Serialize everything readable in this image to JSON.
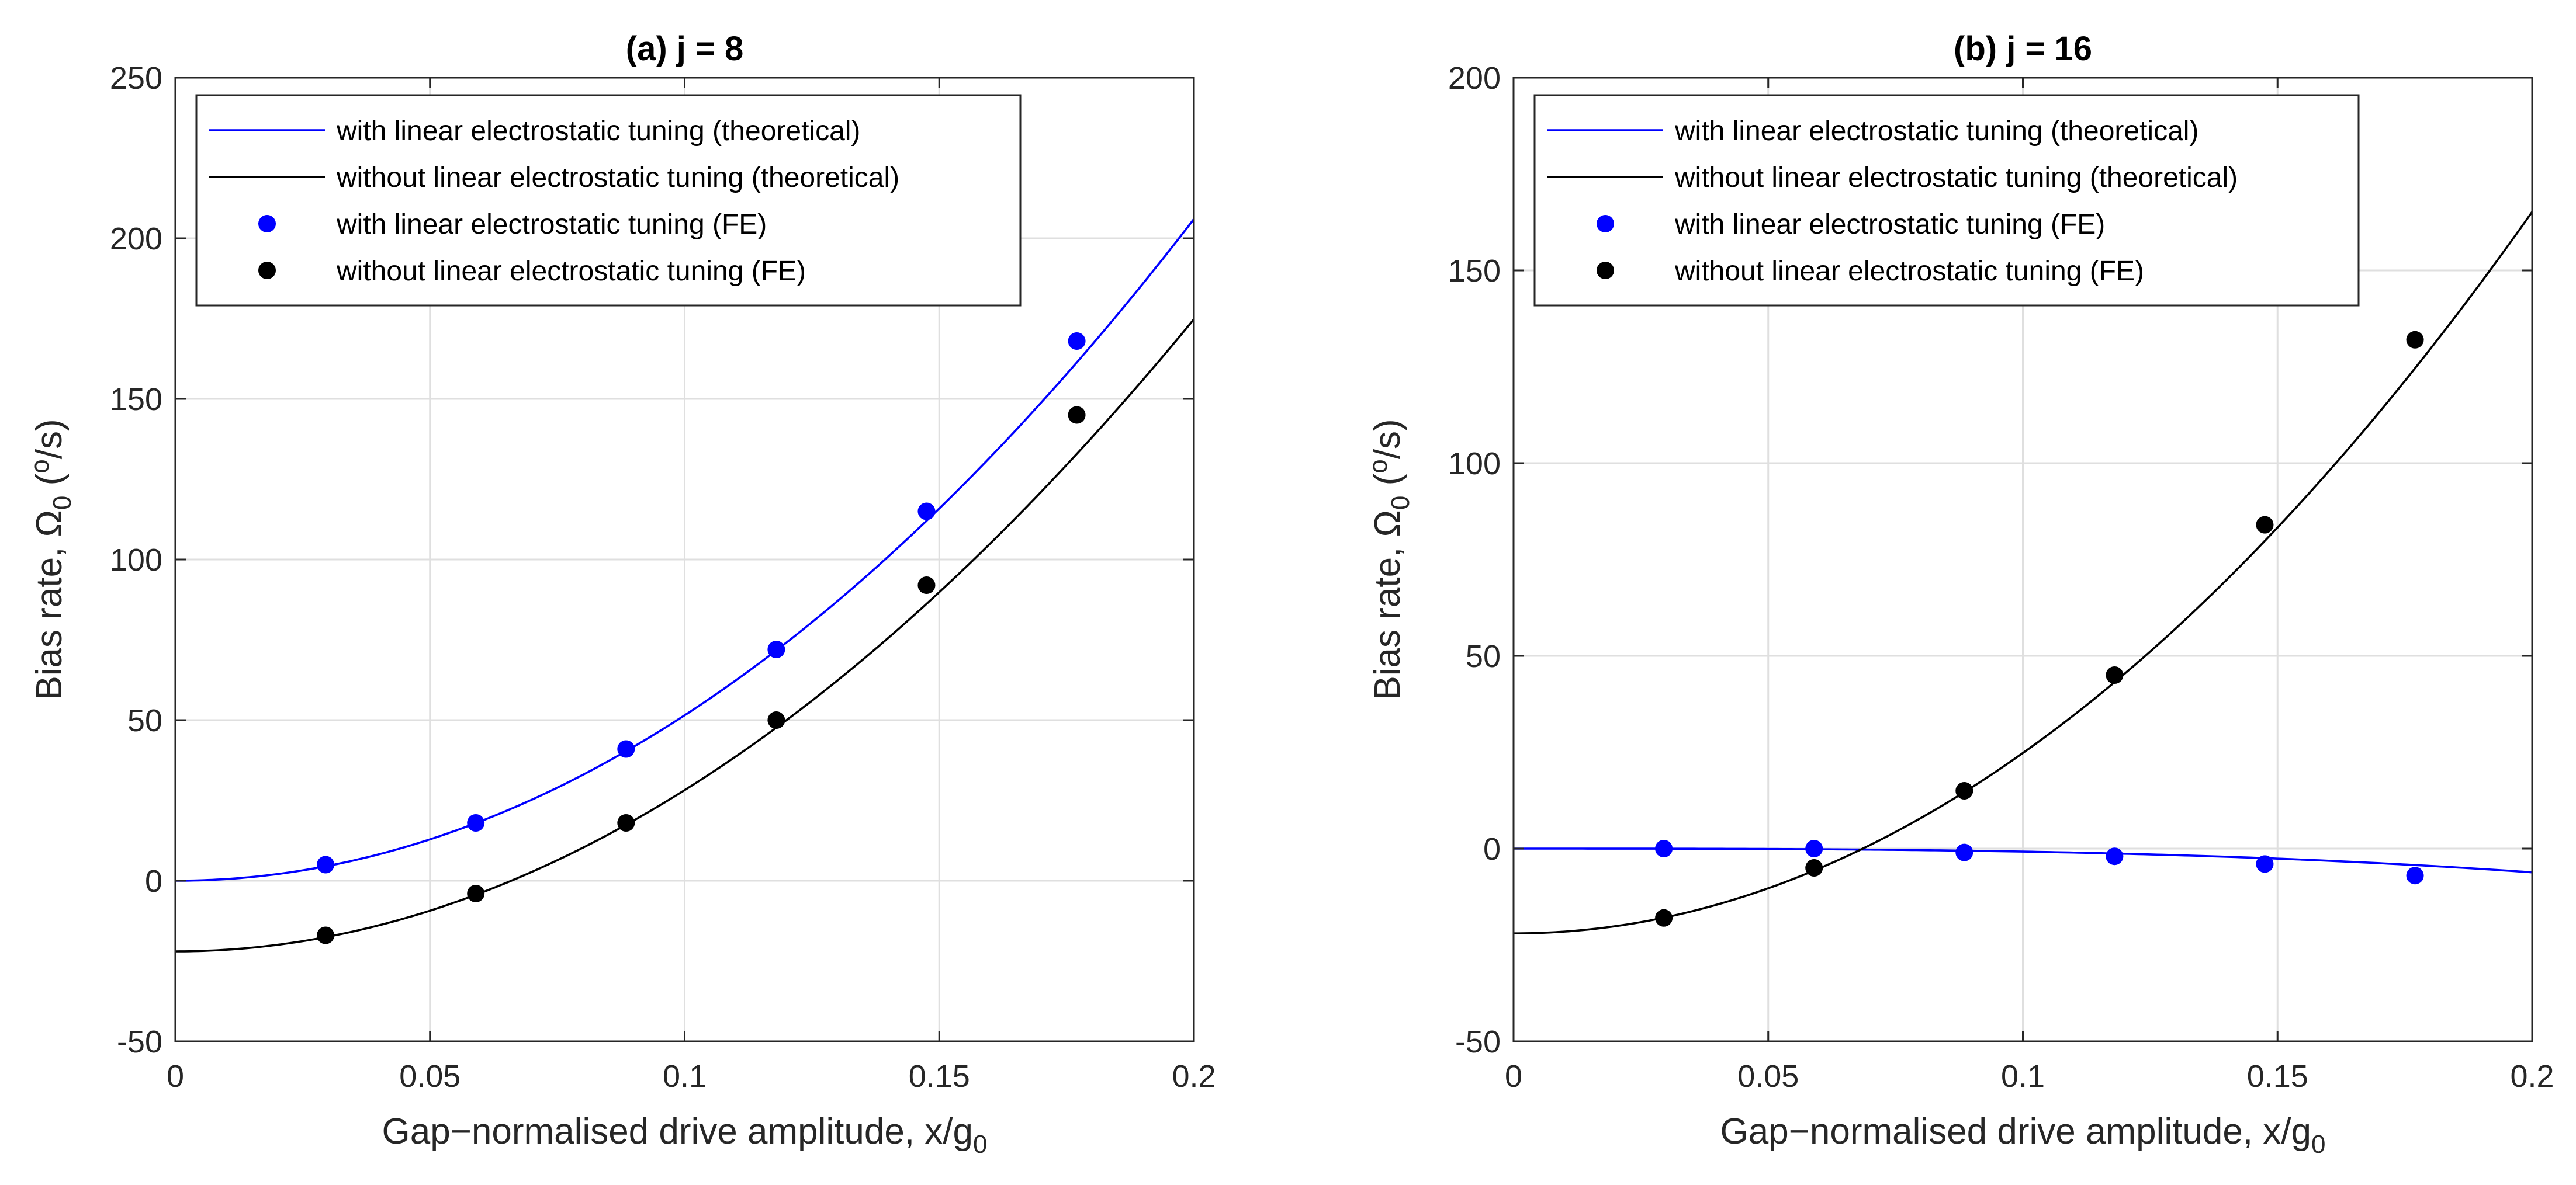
{
  "chart_data": [
    {
      "type": "line",
      "title": "(a) j = 8",
      "xlabel": {
        "main": "Gap−normalised drive amplitude, x/g",
        "sub": "0"
      },
      "ylabel": {
        "main": "Bias rate, Ω",
        "sub": "0",
        "open": " (",
        "sup": "o",
        "close": "/s)"
      },
      "xlim": [
        0,
        0.2
      ],
      "ylim": [
        -50,
        250
      ],
      "x_ticks": [
        0,
        0.05,
        0.1,
        0.15,
        0.2
      ],
      "x_tick_labels": [
        "0",
        "0.05",
        "0.1",
        "0.15",
        "0.2"
      ],
      "y_ticks": [
        -50,
        0,
        50,
        100,
        150,
        200,
        250
      ],
      "y_tick_labels": [
        "-50",
        "0",
        "50",
        "100",
        "150",
        "200",
        "250"
      ],
      "grid": true,
      "legend_position": "top-left",
      "series": [
        {
          "name": "with linear electrostatic tuning (theoretical)",
          "kind": "line",
          "color": "#0000ff",
          "curve": {
            "a": 0,
            "b": 5150,
            "c": 0
          }
        },
        {
          "name": "without linear electrostatic tuning (theoretical)",
          "kind": "line",
          "color": "#000000",
          "curve": {
            "a": -22,
            "b": 5120,
            "c": -1000
          }
        },
        {
          "name": "with linear electrostatic tuning (FE)",
          "kind": "points",
          "color": "#0000ff",
          "x": [
            0.0295,
            0.059,
            0.0885,
            0.118,
            0.1475,
            0.177
          ],
          "y": [
            5,
            18,
            41,
            72,
            115,
            168
          ]
        },
        {
          "name": "without linear electrostatic tuning (FE)",
          "kind": "points",
          "color": "#000000",
          "x": [
            0.0295,
            0.059,
            0.0885,
            0.118,
            0.1475,
            0.177
          ],
          "y": [
            -17,
            -4,
            18,
            50,
            92,
            145
          ]
        }
      ]
    },
    {
      "type": "line",
      "title": "(b) j = 16",
      "xlabel": {
        "main": "Gap−normalised drive amplitude, x/g",
        "sub": "0"
      },
      "ylabel": {
        "main": "Bias rate, Ω",
        "sub": "0",
        "open": " (",
        "sup": "o",
        "close": "/s)"
      },
      "xlim": [
        0,
        0.2
      ],
      "ylim": [
        -50,
        200
      ],
      "x_ticks": [
        0,
        0.05,
        0.1,
        0.15,
        0.2
      ],
      "x_tick_labels": [
        "0",
        "0.05",
        "0.1",
        "0.15",
        "0.2"
      ],
      "y_ticks": [
        -50,
        0,
        50,
        100,
        150,
        200
      ],
      "y_tick_labels": [
        "-50",
        "0",
        "50",
        "100",
        "150",
        "200"
      ],
      "grid": true,
      "legend_position": "top-left",
      "series": [
        {
          "name": "with linear electrostatic tuning (theoretical)",
          "kind": "line",
          "color": "#0000ff",
          "curve": {
            "a": 0,
            "b": 0,
            "c": -770
          }
        },
        {
          "name": "without linear electrostatic tuning (theoretical)",
          "kind": "line",
          "color": "#000000",
          "curve": {
            "a": -22,
            "b": 4680,
            "c": 0
          }
        },
        {
          "name": "with linear electrostatic tuning (FE)",
          "kind": "points",
          "color": "#0000ff",
          "x": [
            0.0295,
            0.059,
            0.0885,
            0.118,
            0.1475,
            0.177
          ],
          "y": [
            0,
            0,
            -1,
            -2,
            -4,
            -7
          ]
        },
        {
          "name": "without linear electrostatic tuning (FE)",
          "kind": "points",
          "color": "#000000",
          "x": [
            0.0295,
            0.059,
            0.0885,
            0.118,
            0.1475,
            0.177
          ],
          "y": [
            -18,
            -5,
            15,
            45,
            84,
            132
          ]
        }
      ]
    }
  ]
}
